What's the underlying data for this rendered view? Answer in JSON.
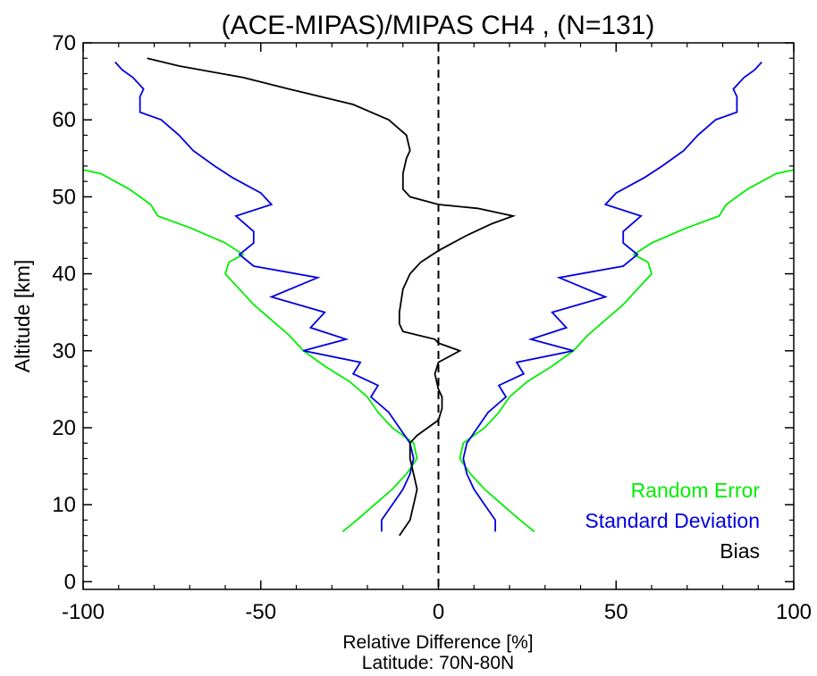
{
  "chart_data": {
    "type": "line",
    "title": "(ACE-MIPAS)/MIPAS CH4 , (N=131)",
    "xlabel": "Relative Difference [%]",
    "subxlabel": "Latitude: 70N-80N",
    "ylabel": "Altitude [km]",
    "xlim": [
      -100,
      100
    ],
    "ylim": [
      -1,
      70
    ],
    "xticks": [
      -100,
      -50,
      0,
      50,
      100
    ],
    "xtick_labels": [
      "-100",
      "-50",
      "0",
      "50",
      "100"
    ],
    "yticks": [
      0,
      10,
      20,
      30,
      40,
      50,
      60,
      70
    ],
    "ytick_labels": [
      "0",
      "10",
      "20",
      "30",
      "40",
      "50",
      "60",
      "70"
    ],
    "grid": false,
    "zero_line": {
      "x": 0,
      "style": "dashed",
      "color": "#000000"
    },
    "legend": {
      "placement": "bottom-right",
      "entries": [
        {
          "label": "Random Error",
          "color": "#00ee00"
        },
        {
          "label": "Standard Deviation",
          "color": "#0000e0"
        },
        {
          "label": "Bias",
          "color": "#000000"
        }
      ]
    },
    "series": [
      {
        "name": "Random Error",
        "color": "#00ee00",
        "mirrored": true,
        "y": [
          6.5,
          8,
          10,
          12,
          14,
          16,
          18,
          20,
          22,
          24,
          26,
          28,
          30,
          32,
          34,
          36,
          38,
          40,
          41.5,
          42.5,
          44,
          46,
          47.5,
          49,
          51,
          53,
          53.5
        ],
        "x": [
          27,
          23,
          18,
          13,
          9,
          6,
          7,
          13,
          17,
          20,
          25,
          32,
          38,
          42,
          47,
          52,
          56,
          60,
          59,
          55,
          60,
          70,
          79,
          81,
          87,
          95,
          100
        ]
      },
      {
        "name": "Standard Deviation",
        "color": "#0000e0",
        "mirrored": true,
        "y": [
          6.5,
          8,
          10,
          12,
          14,
          16,
          18,
          20,
          22,
          24,
          25.5,
          27,
          28.5,
          30,
          31.5,
          33,
          35,
          37,
          39.5,
          41,
          42.5,
          44,
          45.5,
          47.5,
          49,
          50.5,
          52.5,
          54,
          56,
          58,
          60,
          61,
          63,
          64,
          65.5,
          66.5,
          67.5
        ],
        "x": [
          16,
          16,
          13,
          10,
          8,
          7,
          8,
          11,
          14,
          19,
          17,
          24,
          22,
          38,
          26,
          36,
          32,
          47,
          34,
          52,
          56,
          52,
          52,
          57,
          47,
          50,
          58,
          63,
          69,
          73,
          78,
          84,
          84,
          83,
          86,
          89,
          91
        ]
      },
      {
        "name": "Bias",
        "color": "#000000",
        "mirrored": false,
        "y": [
          6,
          8,
          10,
          12,
          14,
          16,
          18,
          19,
          20,
          21,
          22.5,
          24,
          25,
          27,
          28.5,
          30,
          31,
          31.5,
          32.5,
          33.5,
          35,
          38,
          40,
          41.5,
          43,
          45,
          46.5,
          47.5,
          48.5,
          49,
          50,
          51,
          53,
          55,
          56,
          58,
          60,
          62,
          64,
          65.5,
          67,
          68
        ],
        "x": [
          -11,
          -8,
          -7,
          -6,
          -7,
          -8,
          -8,
          -6,
          -3,
          0,
          1,
          1,
          0,
          -1,
          0,
          6,
          0,
          -1,
          -10,
          -11,
          -11,
          -10,
          -8,
          -5,
          0,
          8,
          15,
          21,
          11,
          0,
          -8,
          -10,
          -10,
          -9,
          -8,
          -9,
          -14,
          -24,
          -42,
          -55,
          -73,
          -82
        ]
      }
    ]
  }
}
